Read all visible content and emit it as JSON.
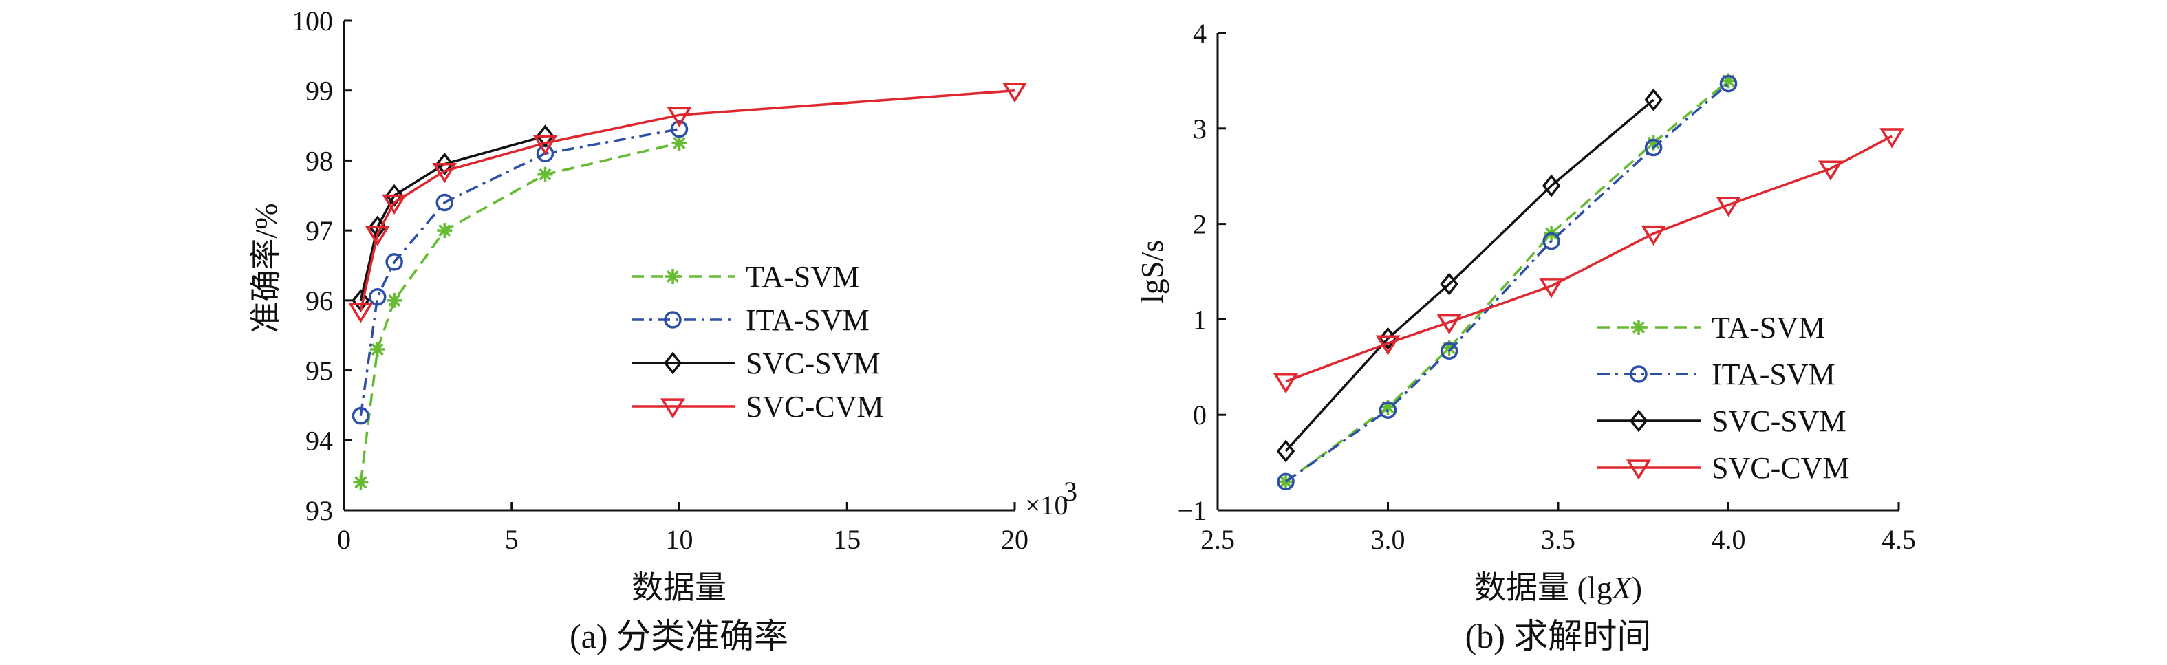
{
  "chart_data": [
    {
      "type": "line",
      "caption": "(a) 分类准确率",
      "xlabel": "数据量",
      "ylabel": "准确率/%",
      "x_multiplier_label": "×10",
      "x_multiplier_exp": "3",
      "xlim": [
        0,
        20
      ],
      "ylim": [
        93,
        100
      ],
      "xticks": [
        0,
        5,
        10,
        15,
        20
      ],
      "yticks": [
        93,
        94,
        95,
        96,
        97,
        98,
        99,
        100
      ],
      "legend_position": "center-right",
      "series": [
        {
          "name": "TA-SVM",
          "color": "#66bb33",
          "dash": "dashed",
          "marker": "asterisk",
          "x": [
            0.5,
            1,
            1.5,
            3,
            6,
            10
          ],
          "y": [
            93.4,
            95.3,
            96.0,
            97.0,
            97.8,
            98.25
          ]
        },
        {
          "name": "ITA-SVM",
          "color": "#2e4fa8",
          "dash": "dashdot",
          "marker": "circle",
          "x": [
            0.5,
            1,
            1.5,
            3,
            6,
            10
          ],
          "y": [
            94.35,
            96.05,
            96.55,
            97.4,
            98.1,
            98.45
          ]
        },
        {
          "name": "SVC-SVM",
          "color": "#111111",
          "dash": "solid",
          "marker": "diamond",
          "x": [
            0.5,
            1,
            1.5,
            3,
            6
          ],
          "y": [
            96.0,
            97.05,
            97.5,
            97.95,
            98.35
          ]
        },
        {
          "name": "SVC-CVM",
          "color": "#e0262e",
          "dash": "solid",
          "marker": "triangle-down",
          "x": [
            0.5,
            1,
            1.5,
            3,
            6,
            10,
            20
          ],
          "y": [
            95.85,
            96.95,
            97.4,
            97.85,
            98.25,
            98.65,
            99.0
          ]
        }
      ]
    },
    {
      "type": "line",
      "caption": "(b) 求解时间",
      "xlabel_prefix": "数据量 (lg",
      "xlabel_var": "X",
      "xlabel_suffix": ")",
      "ylabel": "lgS/s",
      "xlim": [
        2.5,
        4.5
      ],
      "ylim": [
        -1,
        4
      ],
      "xticks": [
        "2.5",
        "3.0",
        "3.5",
        "4.0",
        "4.5"
      ],
      "yticks": [
        "−1",
        "0",
        "1",
        "2",
        "3",
        "4"
      ],
      "legend_position": "lower-right",
      "series": [
        {
          "name": "TA-SVM",
          "color": "#66bb33",
          "dash": "dashed",
          "marker": "asterisk",
          "x": [
            2.7,
            3.0,
            3.18,
            3.48,
            3.78,
            4.0
          ],
          "y": [
            -0.7,
            0.08,
            0.7,
            1.9,
            2.85,
            3.5
          ]
        },
        {
          "name": "ITA-SVM",
          "color": "#2e4fa8",
          "dash": "dashdot",
          "marker": "circle",
          "x": [
            2.7,
            3.0,
            3.18,
            3.48,
            3.78,
            4.0
          ],
          "y": [
            -0.7,
            0.05,
            0.67,
            1.82,
            2.8,
            3.47
          ]
        },
        {
          "name": "SVC-SVM",
          "color": "#111111",
          "dash": "solid",
          "marker": "diamond",
          "x": [
            2.7,
            3.0,
            3.18,
            3.48,
            3.78
          ],
          "y": [
            -0.38,
            0.8,
            1.37,
            2.4,
            3.3
          ]
        },
        {
          "name": "SVC-CVM",
          "color": "#e0262e",
          "dash": "solid",
          "marker": "triangle-down",
          "x": [
            2.7,
            3.0,
            3.18,
            3.48,
            3.78,
            4.0,
            4.3,
            4.48
          ],
          "y": [
            0.35,
            0.75,
            0.97,
            1.35,
            1.9,
            2.2,
            2.58,
            2.92
          ]
        }
      ]
    }
  ]
}
